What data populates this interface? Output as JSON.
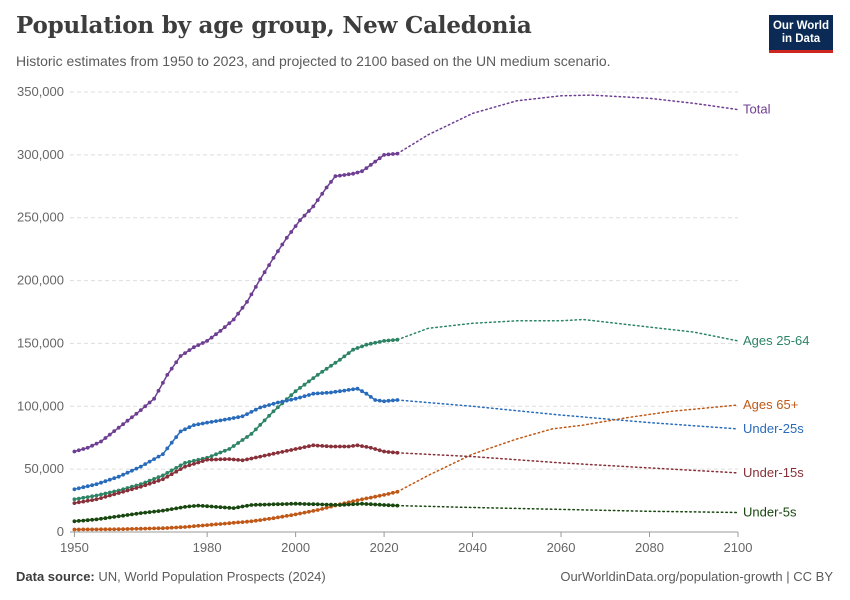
{
  "header": {
    "title": "Population by age group, New Caledonia",
    "subtitle": "Historic estimates from 1950 to 2023, and projected to 2100 based on the UN medium scenario.",
    "logo_line1": "Our World",
    "logo_line2": "in Data"
  },
  "footer": {
    "source_label": "Data source:",
    "source_text": "UN, World Population Prospects (2024)",
    "credit": "OurWorldinData.org/population-growth | CC BY"
  },
  "colors": {
    "Total": "#6d3e91",
    "Ages 25-64": "#2c8465",
    "Ages 65+": "#c05917",
    "Under-25s": "#286bbb",
    "Under-15s": "#883039",
    "Under-5s": "#18470f",
    "grid": "#dddddd",
    "axis_text": "#666666"
  },
  "chart_data": {
    "type": "line",
    "title": "Population by age group, New Caledonia",
    "xlabel": "",
    "ylabel": "",
    "xlim": [
      1949,
      2100
    ],
    "ylim": [
      0,
      350000
    ],
    "grid": "horizontal dashed",
    "legend": "labels at line ends (right)",
    "historic_end": 2023,
    "projection_style": "dotted",
    "x_ticks": [
      "1950",
      "1980",
      "2000",
      "2020",
      "2040",
      "2060",
      "2080",
      "2100"
    ],
    "x_tick_values": [
      1950,
      1980,
      2000,
      2020,
      2040,
      2060,
      2080,
      2100
    ],
    "y_ticks": [
      "0",
      "50,000",
      "100,000",
      "150,000",
      "200,000",
      "250,000",
      "300,000",
      "350,000"
    ],
    "y_tick_values": [
      0,
      50000,
      100000,
      150000,
      200000,
      250000,
      300000,
      350000
    ],
    "series": [
      {
        "name": "Total",
        "points": [
          [
            1950,
            64000
          ],
          [
            1953,
            67000
          ],
          [
            1956,
            72000
          ],
          [
            1960,
            83000
          ],
          [
            1964,
            94000
          ],
          [
            1968,
            106000
          ],
          [
            1971,
            125000
          ],
          [
            1974,
            140000
          ],
          [
            1977,
            147000
          ],
          [
            1980,
            152000
          ],
          [
            1983,
            160000
          ],
          [
            1986,
            169000
          ],
          [
            1989,
            183000
          ],
          [
            1992,
            201000
          ],
          [
            1995,
            218000
          ],
          [
            1998,
            234000
          ],
          [
            2001,
            248000
          ],
          [
            2004,
            259000
          ],
          [
            2007,
            274000
          ],
          [
            2009,
            283000
          ],
          [
            2011,
            284000
          ],
          [
            2013,
            285000
          ],
          [
            2015,
            287000
          ],
          [
            2017,
            292000
          ],
          [
            2020,
            300000
          ],
          [
            2023,
            301000
          ],
          [
            2030,
            316000
          ],
          [
            2040,
            333000
          ],
          [
            2050,
            343000
          ],
          [
            2060,
            347000
          ],
          [
            2067,
            347500
          ],
          [
            2080,
            345000
          ],
          [
            2090,
            341000
          ],
          [
            2100,
            336000
          ]
        ]
      },
      {
        "name": "Ages 25-64",
        "points": [
          [
            1950,
            26000
          ],
          [
            1955,
            29000
          ],
          [
            1960,
            33000
          ],
          [
            1965,
            38000
          ],
          [
            1970,
            45000
          ],
          [
            1975,
            55000
          ],
          [
            1980,
            59000
          ],
          [
            1985,
            66000
          ],
          [
            1990,
            78000
          ],
          [
            1995,
            96000
          ],
          [
            2000,
            112000
          ],
          [
            2005,
            125000
          ],
          [
            2010,
            137000
          ],
          [
            2013,
            145000
          ],
          [
            2016,
            149000
          ],
          [
            2020,
            152000
          ],
          [
            2023,
            153000
          ],
          [
            2030,
            162000
          ],
          [
            2040,
            166000
          ],
          [
            2050,
            168000
          ],
          [
            2060,
            168000
          ],
          [
            2065,
            169000
          ],
          [
            2080,
            163000
          ],
          [
            2090,
            159000
          ],
          [
            2100,
            152000
          ]
        ]
      },
      {
        "name": "Under-25s",
        "points": [
          [
            1950,
            34000
          ],
          [
            1955,
            38000
          ],
          [
            1960,
            44000
          ],
          [
            1965,
            52000
          ],
          [
            1970,
            62000
          ],
          [
            1974,
            80000
          ],
          [
            1977,
            85000
          ],
          [
            1980,
            87000
          ],
          [
            1985,
            90000
          ],
          [
            1988,
            92000
          ],
          [
            1992,
            99000
          ],
          [
            1996,
            103000
          ],
          [
            2000,
            106000
          ],
          [
            2004,
            110000
          ],
          [
            2008,
            111000
          ],
          [
            2012,
            113000
          ],
          [
            2014,
            114000
          ],
          [
            2016,
            110000
          ],
          [
            2018,
            105000
          ],
          [
            2020,
            104000
          ],
          [
            2023,
            105000
          ],
          [
            2040,
            100000
          ],
          [
            2060,
            93000
          ],
          [
            2080,
            87000
          ],
          [
            2100,
            82000
          ]
        ]
      },
      {
        "name": "Ages 65+",
        "points": [
          [
            1950,
            2000
          ],
          [
            1960,
            2200
          ],
          [
            1970,
            3000
          ],
          [
            1975,
            4000
          ],
          [
            1980,
            5500
          ],
          [
            1985,
            7000
          ],
          [
            1990,
            8500
          ],
          [
            1995,
            11000
          ],
          [
            2000,
            14000
          ],
          [
            2005,
            17500
          ],
          [
            2010,
            22000
          ],
          [
            2015,
            26000
          ],
          [
            2020,
            29500
          ],
          [
            2023,
            32000
          ],
          [
            2030,
            45000
          ],
          [
            2040,
            62000
          ],
          [
            2050,
            74000
          ],
          [
            2058,
            82000
          ],
          [
            2065,
            85000
          ],
          [
            2075,
            91000
          ],
          [
            2085,
            96000
          ],
          [
            2100,
            101000
          ]
        ]
      },
      {
        "name": "Under-15s",
        "points": [
          [
            1950,
            23000
          ],
          [
            1955,
            26000
          ],
          [
            1960,
            31000
          ],
          [
            1965,
            36000
          ],
          [
            1970,
            42000
          ],
          [
            1975,
            52000
          ],
          [
            1980,
            57500
          ],
          [
            1985,
            58000
          ],
          [
            1988,
            57000
          ],
          [
            1992,
            60000
          ],
          [
            1996,
            63000
          ],
          [
            2000,
            66000
          ],
          [
            2004,
            69000
          ],
          [
            2008,
            68000
          ],
          [
            2012,
            68000
          ],
          [
            2014,
            69000
          ],
          [
            2017,
            67000
          ],
          [
            2020,
            64000
          ],
          [
            2023,
            63000
          ],
          [
            2040,
            60000
          ],
          [
            2060,
            55000
          ],
          [
            2080,
            51000
          ],
          [
            2100,
            47000
          ]
        ]
      },
      {
        "name": "Under-5s",
        "points": [
          [
            1950,
            8500
          ],
          [
            1955,
            10000
          ],
          [
            1960,
            12500
          ],
          [
            1965,
            15000
          ],
          [
            1970,
            17000
          ],
          [
            1975,
            20000
          ],
          [
            1978,
            21000
          ],
          [
            1982,
            20000
          ],
          [
            1986,
            19000
          ],
          [
            1990,
            21500
          ],
          [
            1995,
            22000
          ],
          [
            2000,
            22500
          ],
          [
            2005,
            22000
          ],
          [
            2010,
            21500
          ],
          [
            2015,
            22500
          ],
          [
            2020,
            21500
          ],
          [
            2023,
            21000
          ],
          [
            2040,
            19500
          ],
          [
            2060,
            18000
          ],
          [
            2080,
            16500
          ],
          [
            2100,
            15500
          ]
        ]
      }
    ]
  }
}
